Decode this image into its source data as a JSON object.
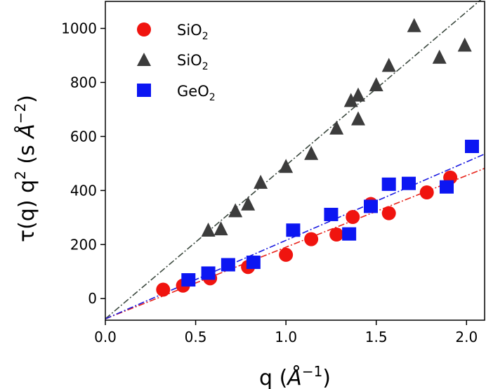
{
  "chart_data": {
    "type": "scatter",
    "xlabel": {
      "main": "q (",
      "unit": "Å",
      "exp": "−1",
      "close": ")"
    },
    "ylabel": {
      "main": "τ(q) q",
      "qexp": "2",
      "mid": " (s ",
      "unit": "Å",
      "exp": "−2",
      "close": ")"
    },
    "xlim": [
      0.0,
      2.1
    ],
    "ylim": [
      -80,
      1100
    ],
    "xticks": [
      "0.0",
      "0.5",
      "1.0",
      "1.5",
      "2.0"
    ],
    "xtick_values": [
      0.0,
      0.5,
      1.0,
      1.5,
      2.0
    ],
    "yticks": [
      "0",
      "200",
      "400",
      "600",
      "800",
      "1000"
    ],
    "ytick_values": [
      0,
      200,
      400,
      600,
      800,
      1000
    ],
    "grid": false,
    "legend_position": "top-left",
    "series": [
      {
        "name": "SiO",
        "name_sub": "2",
        "marker": "circle",
        "color": "#f0140f",
        "x": [
          0.32,
          0.43,
          0.58,
          0.79,
          1.0,
          1.14,
          1.28,
          1.37,
          1.47,
          1.57,
          1.78,
          1.91
        ],
        "y": [
          33,
          48,
          75,
          117,
          162,
          220,
          237,
          302,
          350,
          316,
          393,
          448
        ]
      },
      {
        "name": "SiO",
        "name_sub": "2",
        "marker": "triangle",
        "color": "#3c3c3c",
        "x": [
          0.57,
          0.64,
          0.72,
          0.79,
          0.86,
          1.0,
          1.14,
          1.28,
          1.36,
          1.4,
          1.4,
          1.5,
          1.57,
          1.71,
          1.85,
          1.99
        ],
        "y": [
          250,
          255,
          322,
          347,
          427,
          486,
          534,
          628,
          730,
          662,
          750,
          788,
          860,
          1007,
          890,
          935
        ]
      },
      {
        "name": "GeO",
        "name_sub": "2",
        "marker": "square",
        "color": "#0c16f2",
        "x": [
          0.46,
          0.57,
          0.68,
          0.82,
          1.04,
          1.25,
          1.35,
          1.47,
          1.57,
          1.68,
          1.89,
          2.03
        ],
        "y": [
          68,
          93,
          124,
          133,
          252,
          310,
          238,
          340,
          422,
          425,
          412,
          562
        ]
      }
    ],
    "fit_lines": [
      {
        "color": "#3d4a40",
        "x": [
          0.0,
          2.1
        ],
        "y": [
          -75,
          1118
        ]
      },
      {
        "color": "#e8231a",
        "x": [
          0.0,
          2.1
        ],
        "y": [
          -75,
          482
        ]
      },
      {
        "color": "#1a1ae0",
        "x": [
          0.0,
          2.1
        ],
        "y": [
          -75,
          535
        ]
      }
    ]
  }
}
